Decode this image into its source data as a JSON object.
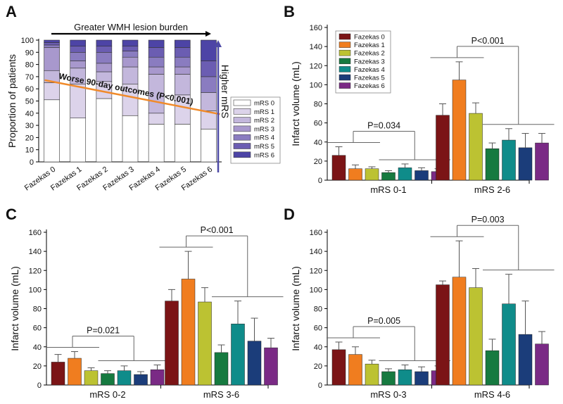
{
  "colors": {
    "fazekas": [
      "#7b1416",
      "#f07d1f",
      "#bcc232",
      "#167a40",
      "#0f8c8a",
      "#1b3d7a",
      "#7a2a85"
    ],
    "mrs": [
      "#ffffff",
      "#dcd3ea",
      "#c3b7dc",
      "#a898cd",
      "#8a7cc0",
      "#6b5db2",
      "#4d44a6"
    ],
    "trend": "#f08a2a",
    "arrow_up": "#4e4aa6"
  },
  "chart_data": [
    {
      "panel": "A",
      "type": "stacked_bar",
      "ylabel": "Proportion of patients",
      "ylim": [
        0,
        100
      ],
      "yticks": [
        0,
        10,
        20,
        30,
        40,
        50,
        60,
        70,
        80,
        90,
        100
      ],
      "categories": [
        "Fazekas 0",
        "Fazekas 1",
        "Fazekas 2",
        "Fazekas 3",
        "Fazekas 4",
        "Fazekas 5",
        "Fazekas 6"
      ],
      "series": [
        {
          "name": "mRS 0",
          "values": [
            51,
            36,
            52,
            38,
            31,
            31,
            27
          ]
        },
        {
          "name": "mRS 1",
          "values": [
            14,
            28,
            14,
            26,
            9,
            24,
            15
          ]
        },
        {
          "name": "mRS 2",
          "values": [
            10,
            13,
            8,
            14,
            32,
            17,
            15
          ]
        },
        {
          "name": "mRS 3",
          "values": [
            19,
            6,
            7,
            8,
            6,
            6,
            0
          ]
        },
        {
          "name": "mRS 4",
          "values": [
            2,
            7,
            9,
            5,
            8,
            8,
            13
          ]
        },
        {
          "name": "mRS 5",
          "values": [
            2,
            5,
            5,
            4,
            8,
            8,
            13
          ]
        },
        {
          "name": "mRS 6",
          "values": [
            2,
            5,
            5,
            5,
            6,
            6,
            17
          ]
        }
      ],
      "trend": {
        "from": 66,
        "to": 41
      },
      "annotations": {
        "top_arrow": "Greater WMH lesion burden",
        "side_arrow": "Higher mRS",
        "trend_label": "Worse 90-day outcomes (P<0.001)"
      }
    },
    {
      "panel": "B",
      "type": "bar",
      "ylabel": "Infarct volume (mL)",
      "ylim": [
        0,
        160
      ],
      "yticks": [
        0,
        20,
        40,
        60,
        80,
        100,
        120,
        140,
        160
      ],
      "legend": [
        "Fazekas 0",
        "Fazekas 1",
        "Fazekas 2",
        "Fazekas 3",
        "Fazekas 4",
        "Fazekas 5",
        "Fazekas 6"
      ],
      "groups": [
        {
          "label": "mRS 0-1",
          "values": [
            26,
            12,
            12,
            8,
            13,
            10,
            9
          ],
          "errors": [
            9,
            4,
            2,
            2,
            4,
            3,
            3
          ],
          "p": "P=0.034"
        },
        {
          "label": "mRS 2-6",
          "values": [
            68,
            105,
            70,
            33,
            42,
            34,
            39
          ],
          "errors": [
            12,
            19,
            11,
            6,
            12,
            15,
            10
          ],
          "p": "P<0.001"
        }
      ]
    },
    {
      "panel": "C",
      "type": "bar",
      "ylabel": "Infarct volume (mL)",
      "ylim": [
        0,
        160
      ],
      "yticks": [
        0,
        20,
        40,
        60,
        80,
        100,
        120,
        140,
        160
      ],
      "groups": [
        {
          "label": "mRS 0-2",
          "values": [
            24,
            28,
            15,
            12,
            15,
            11,
            16
          ],
          "errors": [
            8,
            7,
            3,
            3,
            5,
            3,
            5
          ],
          "p": "P=0.021"
        },
        {
          "label": "mRS 3-6",
          "values": [
            88,
            111,
            87,
            34,
            64,
            46,
            39
          ],
          "errors": [
            12,
            29,
            15,
            8,
            24,
            24,
            10
          ],
          "p": "P<0.001"
        }
      ]
    },
    {
      "panel": "D",
      "type": "bar",
      "ylabel": "Infarct volume (mL)",
      "ylim": [
        0,
        160
      ],
      "yticks": [
        0,
        20,
        40,
        60,
        80,
        100,
        120,
        140,
        160
      ],
      "groups": [
        {
          "label": "mRS 0-3",
          "values": [
            37,
            32,
            22,
            14,
            16,
            14,
            15
          ],
          "errors": [
            8,
            8,
            4,
            3,
            5,
            5,
            5
          ],
          "p": "P=0.005"
        },
        {
          "label": "mRS 4-6",
          "values": [
            105,
            113,
            102,
            36,
            85,
            53,
            43
          ],
          "errors": [
            4,
            38,
            20,
            12,
            31,
            35,
            13
          ],
          "p": "P=0.003"
        }
      ]
    }
  ]
}
